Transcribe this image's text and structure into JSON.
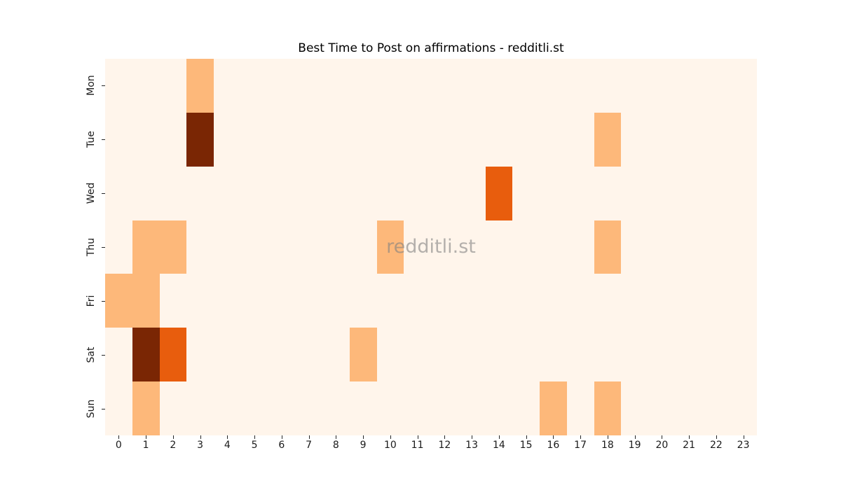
{
  "chart_data": {
    "type": "heatmap",
    "title": "Best Time to Post on affirmations - redditli.st",
    "watermark": "redditli.st",
    "xlabel": "",
    "ylabel": "",
    "x_categories": [
      "0",
      "1",
      "2",
      "3",
      "4",
      "5",
      "6",
      "7",
      "8",
      "9",
      "10",
      "11",
      "12",
      "13",
      "14",
      "15",
      "16",
      "17",
      "18",
      "19",
      "20",
      "21",
      "22",
      "23"
    ],
    "y_categories": [
      "Mon",
      "Tue",
      "Wed",
      "Thu",
      "Fri",
      "Sat",
      "Sun"
    ],
    "value_meaning": "relative posting-activity intensity read from cell color: 0=none, 1=low, 2=high, 3=peak",
    "values": [
      [
        0,
        0,
        0,
        1,
        0,
        0,
        0,
        0,
        0,
        0,
        0,
        0,
        0,
        0,
        0,
        0,
        0,
        0,
        0,
        0,
        0,
        0,
        0,
        0
      ],
      [
        0,
        0,
        0,
        3,
        0,
        0,
        0,
        0,
        0,
        0,
        0,
        0,
        0,
        0,
        0,
        0,
        0,
        0,
        1,
        0,
        0,
        0,
        0,
        0
      ],
      [
        0,
        0,
        0,
        0,
        0,
        0,
        0,
        0,
        0,
        0,
        0,
        0,
        0,
        0,
        2,
        0,
        0,
        0,
        0,
        0,
        0,
        0,
        0,
        0
      ],
      [
        0,
        1,
        1,
        0,
        0,
        0,
        0,
        0,
        0,
        0,
        1,
        0,
        0,
        0,
        0,
        0,
        0,
        0,
        1,
        0,
        0,
        0,
        0,
        0
      ],
      [
        1,
        1,
        0,
        0,
        0,
        0,
        0,
        0,
        0,
        0,
        0,
        0,
        0,
        0,
        0,
        0,
        0,
        0,
        0,
        0,
        0,
        0,
        0,
        0
      ],
      [
        0,
        3,
        2,
        0,
        0,
        0,
        0,
        0,
        0,
        1,
        0,
        0,
        0,
        0,
        0,
        0,
        0,
        0,
        0,
        0,
        0,
        0,
        0,
        0
      ],
      [
        0,
        1,
        0,
        0,
        0,
        0,
        0,
        0,
        0,
        0,
        0,
        0,
        0,
        0,
        0,
        0,
        1,
        0,
        1,
        0,
        0,
        0,
        0,
        0
      ]
    ],
    "colors": {
      "figure_background": "#ffffff",
      "cell_scale": [
        "#fff5eb",
        "#fdb87a",
        "#e85d0d",
        "#7a2604"
      ],
      "title_text": "#000000",
      "tick_text": "#1a1a1a",
      "watermark_text": "#808080"
    },
    "layout": {
      "grid": "off",
      "legend": "none",
      "colorbar": "none",
      "x_axis_side": "bottom",
      "y_axis_side": "left"
    }
  }
}
